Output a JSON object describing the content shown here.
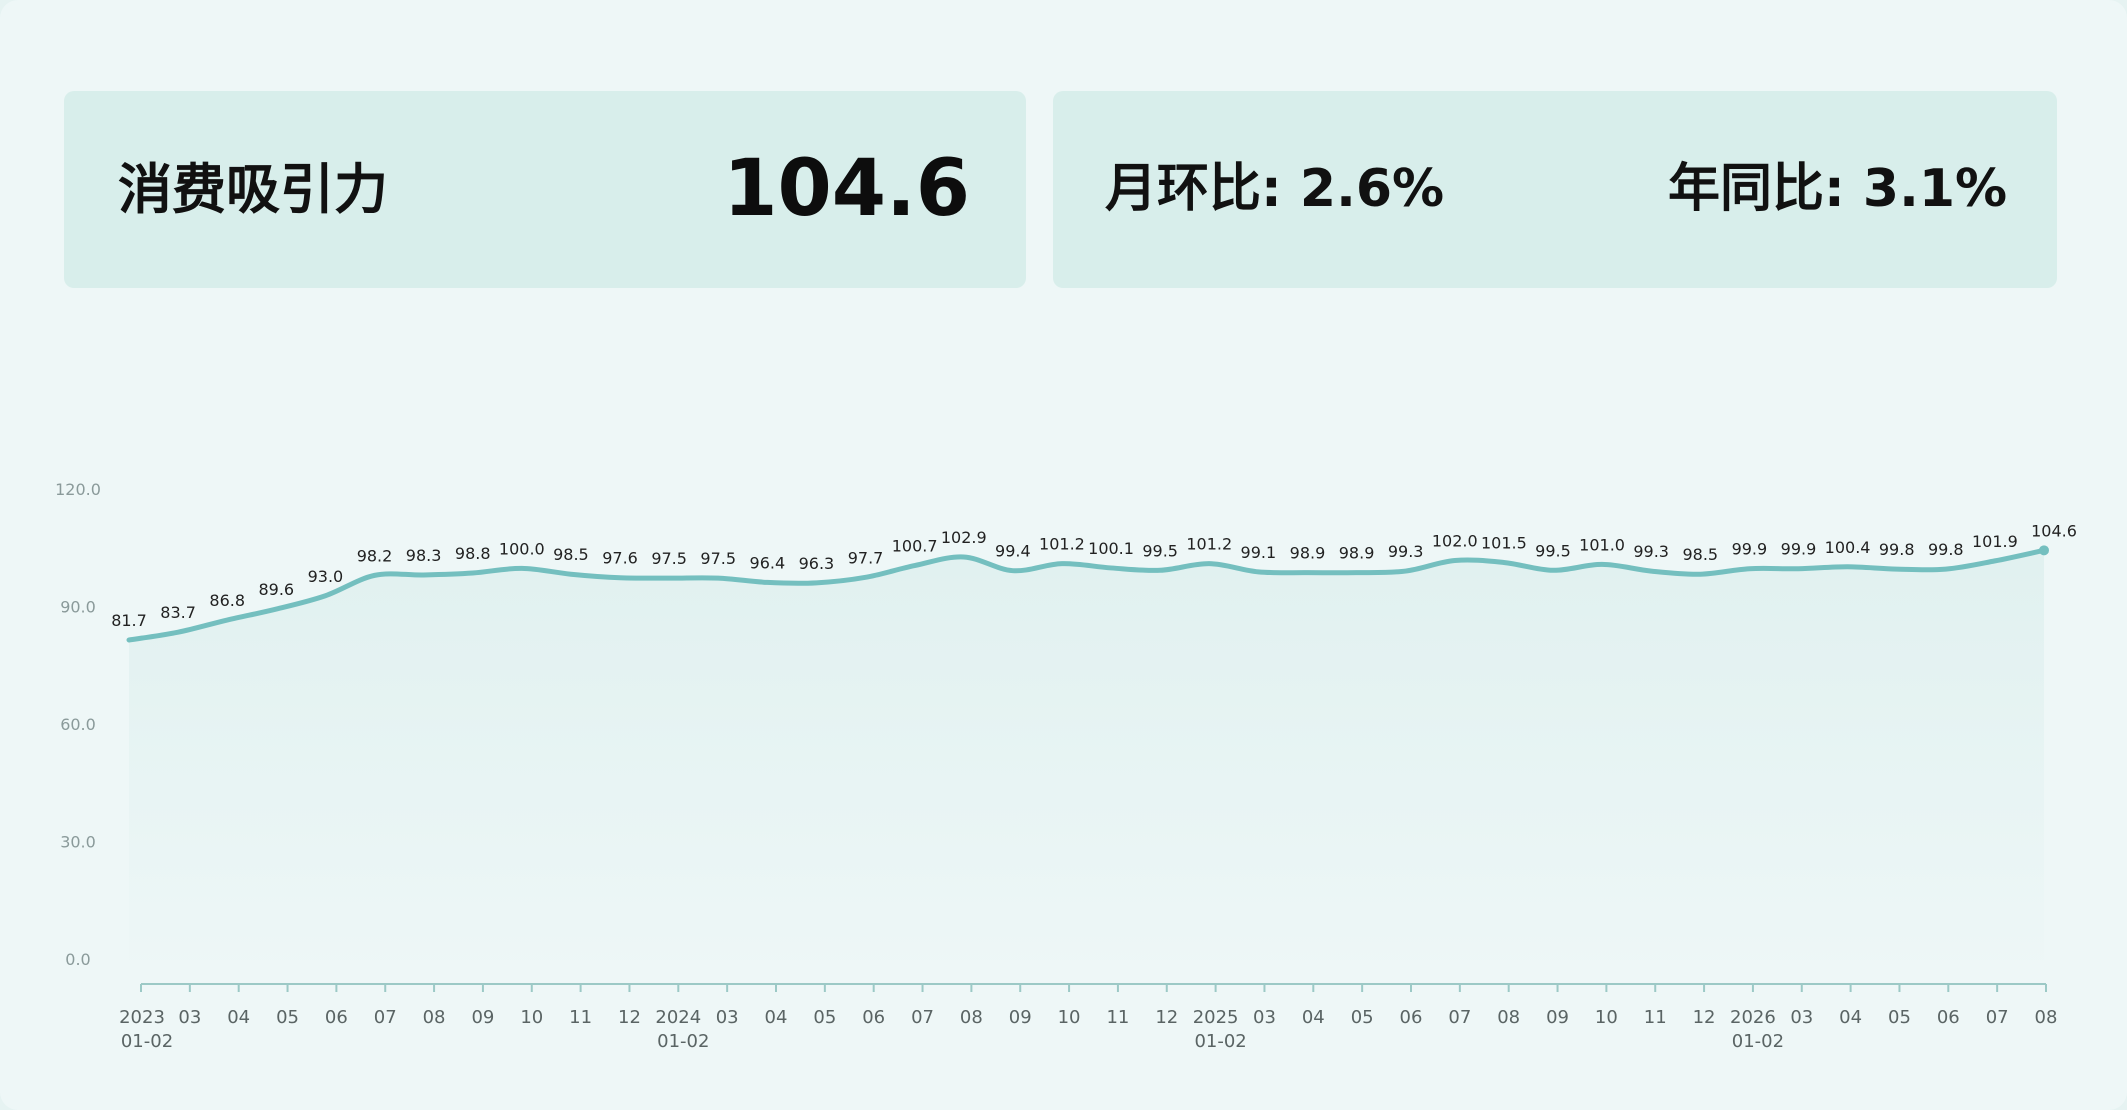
{
  "header": {
    "title": "消费吸引力",
    "value": "104.6",
    "mom_label": "月环比",
    "mom_value": "2.6%",
    "yoy_label": "年同比",
    "yoy_value": "3.1%"
  },
  "colors": {
    "line": "#74bfbf",
    "area": "#dff0ef",
    "card": "#d8eeeb",
    "axis": "#9cc9c6"
  },
  "chart_data": {
    "type": "area",
    "ylim": [
      0,
      120
    ],
    "yticks": [
      "0.0",
      "30.0",
      "60.0",
      "90.0",
      "120.0"
    ],
    "grid": false,
    "x_labels": [
      [
        "2023",
        "01-02"
      ],
      [
        "03"
      ],
      [
        "04"
      ],
      [
        "05"
      ],
      [
        "06"
      ],
      [
        "07"
      ],
      [
        "08"
      ],
      [
        "09"
      ],
      [
        "10"
      ],
      [
        "11"
      ],
      [
        "12"
      ],
      [
        "2024",
        "01-02"
      ],
      [
        "03"
      ],
      [
        "04"
      ],
      [
        "05"
      ],
      [
        "06"
      ],
      [
        "07"
      ],
      [
        "08"
      ],
      [
        "09"
      ],
      [
        "10"
      ],
      [
        "11"
      ],
      [
        "12"
      ],
      [
        "2025",
        "01-02"
      ],
      [
        "03"
      ],
      [
        "04"
      ],
      [
        "05"
      ],
      [
        "06"
      ],
      [
        "07"
      ],
      [
        "08"
      ],
      [
        "09"
      ],
      [
        "10"
      ],
      [
        "11"
      ],
      [
        "12"
      ],
      [
        "2026",
        "01-02"
      ],
      [
        "03"
      ],
      [
        "04"
      ],
      [
        "05"
      ],
      [
        "06"
      ],
      [
        "07"
      ],
      [
        "08"
      ]
    ],
    "values": [
      81.7,
      83.7,
      86.8,
      89.6,
      93.0,
      98.2,
      98.3,
      98.8,
      100.0,
      98.5,
      97.6,
      97.5,
      97.5,
      96.4,
      96.3,
      97.7,
      100.7,
      102.9,
      99.4,
      101.2,
      100.1,
      99.5,
      101.2,
      99.1,
      98.9,
      98.9,
      99.3,
      102.0,
      101.5,
      99.5,
      101.0,
      99.3,
      98.5,
      99.9,
      99.9,
      100.4,
      99.8,
      99.8,
      101.9,
      104.6
    ],
    "value_labels": [
      "81.7",
      "83.7",
      "86.8",
      "89.6",
      "93.0",
      "98.2",
      "98.3",
      "98.8",
      "100.0",
      "98.5",
      "97.6",
      "97.5",
      "97.5",
      "96.4",
      "96.3",
      "97.7",
      "100.7",
      "102.9",
      "99.4",
      "101.2",
      "100.1",
      "99.5",
      "101.2",
      "99.1",
      "98.9",
      "98.9",
      "99.3",
      "102.0",
      "101.5",
      "99.5",
      "101.0",
      "99.3",
      "98.5",
      "99.9",
      "99.9",
      "100.4",
      "99.8",
      "99.8",
      "101.9",
      "104.6"
    ]
  }
}
